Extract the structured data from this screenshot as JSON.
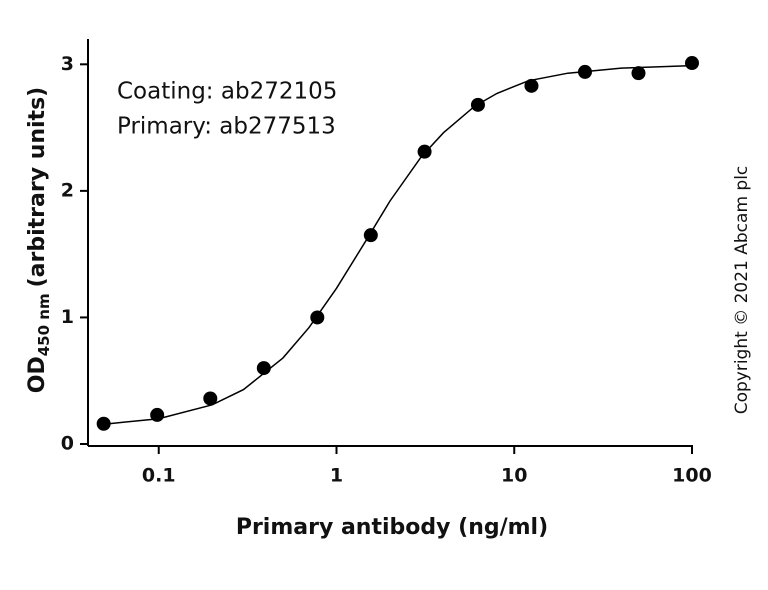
{
  "chart_data": {
    "type": "scatter",
    "annotations": [
      "Coating: ab272105",
      "Primary: ab277513"
    ],
    "copyright": "Copyright © 2021 Abcam plc",
    "xlabel": "Primary antibody (ng/ml)",
    "ylabel": {
      "main": "OD",
      "sub": "450 nm",
      "rest": "(arbitrary units)"
    },
    "x": [
      0.049,
      0.098,
      0.195,
      0.39,
      0.78,
      1.56,
      3.13,
      6.25,
      12.5,
      25,
      50,
      100
    ],
    "values": [
      0.16,
      0.23,
      0.36,
      0.6,
      1.0,
      1.65,
      2.31,
      2.68,
      2.83,
      2.94,
      2.93,
      3.01
    ],
    "color": "#000000",
    "curve": {
      "x": [
        0.05,
        0.1,
        0.2,
        0.3,
        0.5,
        0.7,
        1,
        1.5,
        2,
        3,
        4,
        6,
        8,
        12,
        20,
        40,
        100
      ],
      "values": [
        0.157,
        0.2,
        0.31,
        0.43,
        0.68,
        0.92,
        1.23,
        1.63,
        1.92,
        2.27,
        2.46,
        2.67,
        2.77,
        2.87,
        2.93,
        2.97,
        2.99
      ]
    },
    "xscale": "log",
    "xlim": [
      0.04,
      100
    ],
    "xticks": [
      0.1,
      1,
      10,
      100
    ],
    "ylim": [
      0,
      3.2
    ],
    "yticks": [
      0,
      1,
      2,
      3
    ]
  }
}
